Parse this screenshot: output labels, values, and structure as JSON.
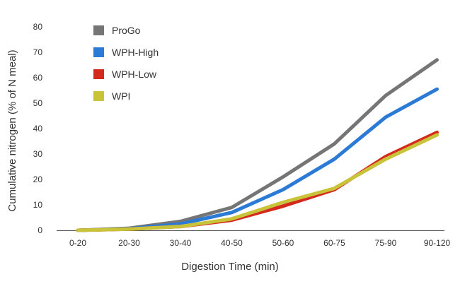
{
  "chart_data": {
    "type": "line",
    "title": "",
    "xlabel": "Digestion Time (min)",
    "ylabel": "Cumulative nitrogen (% of N meal)",
    "ylim": [
      0,
      80
    ],
    "yticks": [
      0,
      10,
      20,
      30,
      40,
      50,
      60,
      70,
      80
    ],
    "categories": [
      "0-20",
      "20-30",
      "30-40",
      "40-50",
      "50-60",
      "60-75",
      "75-90",
      "90-120"
    ],
    "legend_position": "top-left",
    "grid": false,
    "series": [
      {
        "name": "ProGo",
        "color": "#757575",
        "values": [
          0,
          0.8,
          3.5,
          9,
          21,
          34,
          53,
          67
        ]
      },
      {
        "name": "WPH-High",
        "color": "#2a7ad6",
        "values": [
          0,
          0.6,
          2.5,
          7,
          16,
          28,
          44.5,
          55.5
        ]
      },
      {
        "name": "WPH-Low",
        "color": "#d42a1e",
        "values": [
          0,
          0.5,
          1.5,
          4,
          9.5,
          16,
          29,
          38.5
        ]
      },
      {
        "name": "WPI",
        "color": "#c9c33a",
        "values": [
          0,
          0.5,
          1.5,
          4.5,
          11,
          16.5,
          28,
          37.5
        ]
      }
    ]
  }
}
